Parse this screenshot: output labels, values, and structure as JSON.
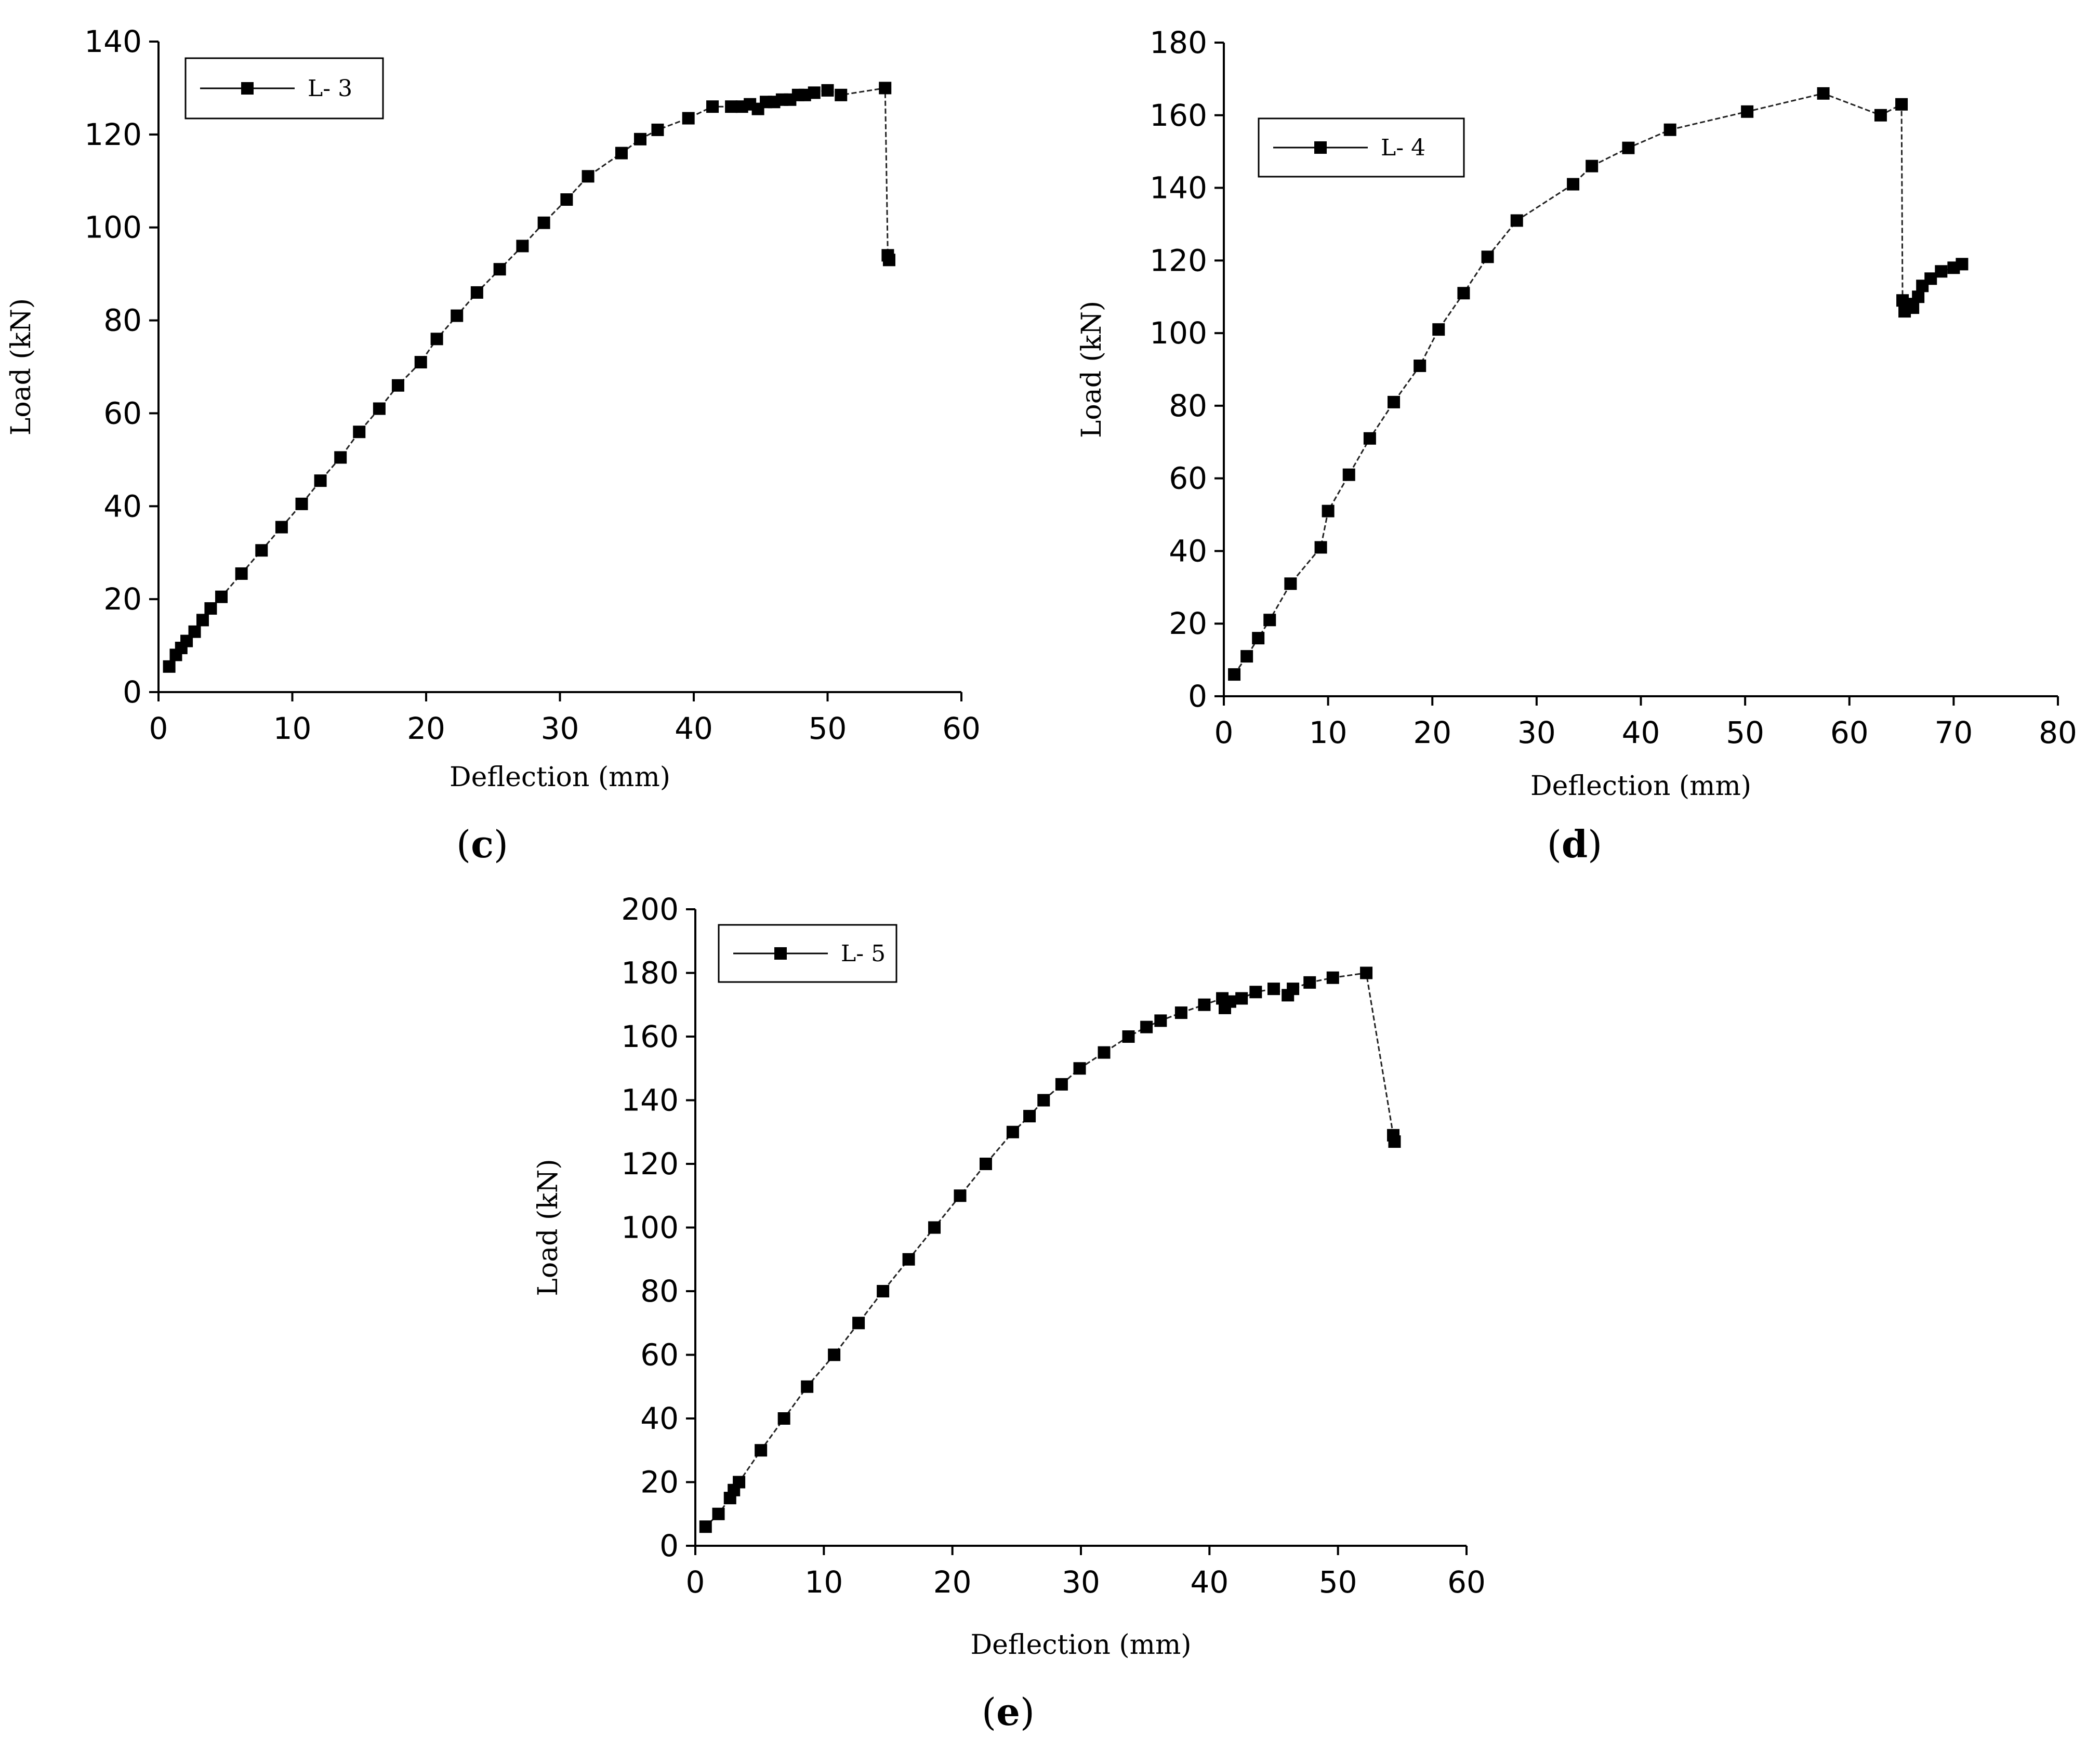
{
  "chart_data": [
    {
      "type": "line",
      "panel_label": "c",
      "xlabel": "Deflection (mm)",
      "ylabel": "Load (kN)",
      "xlim": [
        0,
        60
      ],
      "ylim": [
        0,
        140
      ],
      "xticks": [
        0,
        10,
        20,
        30,
        40,
        50,
        60
      ],
      "yticks": [
        0,
        20,
        40,
        60,
        80,
        100,
        120,
        140
      ],
      "legend_position": "top-left",
      "series": [
        {
          "name": "L- 3",
          "x": [
            0.8,
            1.3,
            1.7,
            2.1,
            2.7,
            3.3,
            3.9,
            4.7,
            6.2,
            7.7,
            9.2,
            10.7,
            12.1,
            13.6,
            15.0,
            16.5,
            17.9,
            19.6,
            20.8,
            22.3,
            23.8,
            25.5,
            27.2,
            28.8,
            30.5,
            32.1,
            34.6,
            36.0,
            37.3,
            39.6,
            41.4,
            42.8,
            43.6,
            44.2,
            44.8,
            45.4,
            46.0,
            46.6,
            47.2,
            47.8,
            48.3,
            49.0,
            50.0,
            51.0,
            54.3,
            54.5,
            54.6
          ],
          "y": [
            5.5,
            8.0,
            9.5,
            11.0,
            13.0,
            15.5,
            18.0,
            20.5,
            25.5,
            30.5,
            35.5,
            40.5,
            45.5,
            50.5,
            56.0,
            61.0,
            66.0,
            71.0,
            76.0,
            81.0,
            86.0,
            91.0,
            96.0,
            101.0,
            106.0,
            111.0,
            116.0,
            119.0,
            121.0,
            123.5,
            126.0,
            126.0,
            126.0,
            126.5,
            125.5,
            127.0,
            127.0,
            127.5,
            127.5,
            128.5,
            128.5,
            129.0,
            129.5,
            128.5,
            130.0,
            94.0,
            93.0
          ]
        }
      ]
    },
    {
      "type": "line",
      "panel_label": "d",
      "xlabel": "Deflection (mm)",
      "ylabel": "Load (kN)",
      "xlim": [
        0,
        80
      ],
      "ylim": [
        0,
        180
      ],
      "xticks": [
        0,
        10,
        20,
        30,
        40,
        50,
        60,
        70,
        80
      ],
      "yticks": [
        0,
        20,
        40,
        60,
        80,
        100,
        120,
        140,
        160,
        180
      ],
      "legend_position": "top-left",
      "series": [
        {
          "name": "L- 4",
          "x": [
            1.0,
            2.2,
            3.3,
            4.4,
            6.4,
            9.3,
            10.0,
            12.0,
            14.0,
            16.3,
            18.8,
            20.6,
            23.0,
            25.3,
            28.1,
            33.5,
            35.3,
            38.8,
            42.8,
            50.2,
            57.5,
            63.0,
            65.0,
            65.1,
            65.3,
            65.6,
            66.1,
            66.6,
            67.0,
            67.8,
            68.8,
            70.0,
            70.8
          ],
          "y": [
            6,
            11,
            16,
            21,
            31,
            41,
            51,
            61,
            71,
            81,
            91,
            101,
            111,
            121,
            131,
            141,
            146,
            151,
            156,
            161,
            166,
            160,
            163,
            109,
            106,
            108,
            107,
            110,
            113,
            115,
            117,
            118,
            119
          ]
        }
      ]
    },
    {
      "type": "line",
      "panel_label": "e",
      "xlabel": "Deflection (mm)",
      "ylabel": "Load (kN)",
      "xlim": [
        0,
        60
      ],
      "ylim": [
        0,
        200
      ],
      "xticks": [
        0,
        10,
        20,
        30,
        40,
        50,
        60
      ],
      "yticks": [
        0,
        20,
        40,
        60,
        80,
        100,
        120,
        140,
        160,
        180,
        200
      ],
      "legend_position": "top-left",
      "series": [
        {
          "name": "L- 5",
          "x": [
            0.8,
            1.8,
            2.7,
            3.0,
            3.4,
            5.1,
            6.9,
            8.7,
            10.8,
            12.7,
            14.6,
            16.6,
            18.6,
            20.6,
            22.6,
            24.7,
            26.0,
            27.1,
            28.5,
            29.9,
            31.8,
            33.7,
            35.1,
            36.2,
            37.8,
            39.6,
            41.0,
            41.2,
            41.6,
            42.5,
            43.6,
            45.0,
            46.1,
            46.5,
            47.8,
            49.6,
            52.2,
            54.3,
            54.4
          ],
          "y": [
            6,
            10,
            15,
            17.5,
            20,
            30,
            40,
            50,
            60,
            70,
            80,
            90,
            100,
            110,
            120,
            130,
            135,
            140,
            145,
            150,
            155,
            160,
            163,
            165,
            167.5,
            170,
            172,
            169,
            171,
            172,
            174,
            175,
            173,
            175,
            177,
            178.5,
            180,
            129,
            127
          ]
        }
      ]
    }
  ]
}
